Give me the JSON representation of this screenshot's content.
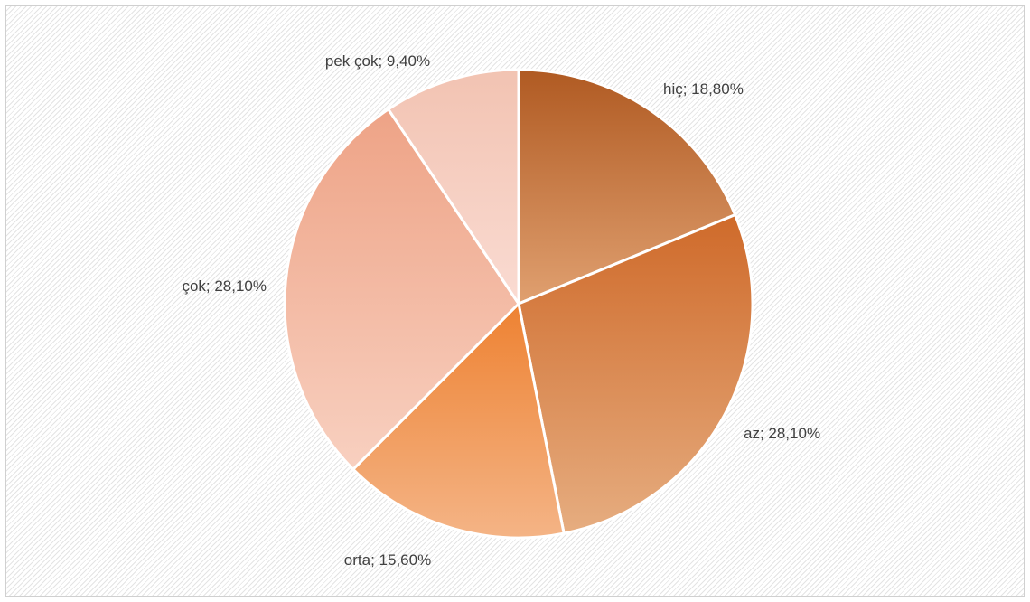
{
  "chart_data": {
    "type": "pie",
    "title": "",
    "categories": [
      "hiç",
      "az",
      "orta",
      "çok",
      "pek çok"
    ],
    "values": [
      18.8,
      28.1,
      15.6,
      28.1,
      9.4
    ],
    "labels": [
      "hiç; 18,80%",
      "az; 28,10%",
      "orta; 15,60%",
      "çok; 28,10%",
      "pek çok; 9,40%"
    ],
    "colors": [
      [
        "#b05a22",
        "#e0a070"
      ],
      [
        "#cf6a2a",
        "#e6ad80"
      ],
      [
        "#ee8232",
        "#f4b486"
      ],
      [
        "#eea386",
        "#f8d0c0"
      ],
      [
        "#f2c3b2",
        "#fadbd2"
      ]
    ],
    "legend": "none",
    "grid": false
  }
}
